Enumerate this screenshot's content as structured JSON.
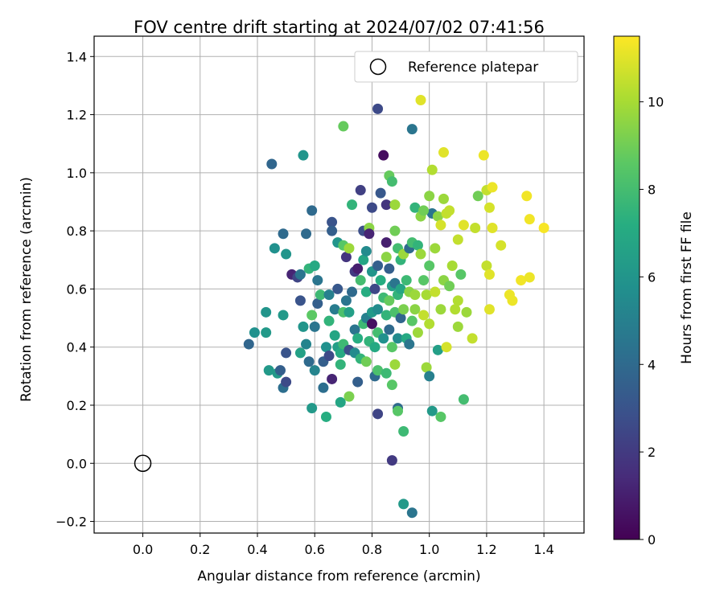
{
  "chart_data": {
    "type": "scatter",
    "title": "FOV centre drift starting at 2024/07/02 07:41:56",
    "xlabel": "Angular distance from reference (arcmin)",
    "ylabel": "Rotation from reference (arcmin)",
    "xlim": [
      -0.17,
      1.54
    ],
    "ylim": [
      -0.24,
      1.47
    ],
    "xticks": [
      "0.0",
      "0.2",
      "0.4",
      "0.6",
      "0.8",
      "1.0",
      "1.2",
      "1.4"
    ],
    "yticks": [
      "−0.2",
      "0.0",
      "0.2",
      "0.4",
      "0.6",
      "0.8",
      "1.0",
      "1.2",
      "1.4"
    ],
    "grid": true,
    "legend": {
      "position": "top-right",
      "entries": [
        "Reference platepar"
      ]
    },
    "colorbar": {
      "label": "Hours from first FF file",
      "colormap": "viridis",
      "range": [
        0,
        11.5
      ],
      "ticks": [
        "0",
        "2",
        "4",
        "6",
        "8",
        "10"
      ]
    },
    "reference_point": {
      "x": 0.0,
      "y": 0.0
    },
    "points": [
      [
        0.37,
        0.41,
        3.8
      ],
      [
        0.39,
        0.45,
        5.8
      ],
      [
        0.43,
        0.45,
        6.2
      ],
      [
        0.43,
        0.52,
        6.0
      ],
      [
        0.44,
        0.32,
        6.2
      ],
      [
        0.45,
        1.03,
        3.8
      ],
      [
        0.46,
        0.74,
        5.8
      ],
      [
        0.47,
        0.31,
        6.2
      ],
      [
        0.48,
        0.32,
        3.5
      ],
      [
        0.49,
        0.51,
        6.2
      ],
      [
        0.49,
        0.26,
        4.2
      ],
      [
        0.49,
        0.79,
        4.0
      ],
      [
        0.5,
        0.72,
        6.0
      ],
      [
        0.5,
        0.38,
        3.0
      ],
      [
        0.5,
        0.28,
        2.6
      ],
      [
        0.52,
        0.65,
        1.2
      ],
      [
        0.54,
        0.64,
        2.4
      ],
      [
        0.55,
        0.65,
        4.5
      ],
      [
        0.55,
        0.56,
        3.0
      ],
      [
        0.55,
        0.38,
        6.6
      ],
      [
        0.56,
        1.06,
        6.0
      ],
      [
        0.56,
        0.47,
        6.0
      ],
      [
        0.57,
        0.79,
        4.0
      ],
      [
        0.57,
        0.41,
        5.2
      ],
      [
        0.58,
        0.67,
        7.5
      ],
      [
        0.58,
        0.35,
        4.0
      ],
      [
        0.59,
        0.51,
        8.6
      ],
      [
        0.59,
        0.19,
        6.2
      ],
      [
        0.59,
        0.87,
        4.0
      ],
      [
        0.6,
        0.47,
        4.5
      ],
      [
        0.6,
        0.32,
        5.2
      ],
      [
        0.6,
        0.68,
        7.0
      ],
      [
        0.61,
        0.63,
        4.5
      ],
      [
        0.61,
        0.55,
        3.5
      ],
      [
        0.62,
        0.58,
        7.8
      ],
      [
        0.63,
        0.35,
        3.5
      ],
      [
        0.63,
        0.26,
        4.2
      ],
      [
        0.64,
        0.16,
        7.2
      ],
      [
        0.64,
        0.4,
        5.8
      ],
      [
        0.65,
        0.37,
        2.6
      ],
      [
        0.65,
        0.58,
        5.0
      ],
      [
        0.65,
        0.49,
        7.5
      ],
      [
        0.66,
        0.83,
        3.0
      ],
      [
        0.66,
        0.8,
        3.5
      ],
      [
        0.66,
        0.29,
        1.2
      ],
      [
        0.67,
        0.53,
        4.8
      ],
      [
        0.67,
        0.44,
        6.8
      ],
      [
        0.68,
        0.4,
        6.5
      ],
      [
        0.68,
        0.6,
        3.2
      ],
      [
        0.68,
        0.76,
        6.0
      ],
      [
        0.69,
        0.38,
        7.0
      ],
      [
        0.69,
        0.34,
        7.5
      ],
      [
        0.69,
        0.21,
        6.8
      ],
      [
        0.7,
        1.16,
        8.8
      ],
      [
        0.7,
        0.52,
        8.2
      ],
      [
        0.7,
        0.75,
        8.5
      ],
      [
        0.7,
        0.41,
        7.8
      ],
      [
        0.71,
        0.71,
        1.8
      ],
      [
        0.71,
        0.56,
        4.5
      ],
      [
        0.72,
        0.39,
        2.8
      ],
      [
        0.72,
        0.74,
        9.8
      ],
      [
        0.72,
        0.52,
        6.5
      ],
      [
        0.72,
        0.23,
        9.2
      ],
      [
        0.73,
        0.89,
        7.5
      ],
      [
        0.73,
        0.59,
        4.0
      ],
      [
        0.74,
        0.66,
        2.0
      ],
      [
        0.74,
        0.46,
        4.5
      ],
      [
        0.74,
        0.38,
        5.5
      ],
      [
        0.75,
        0.67,
        1.0
      ],
      [
        0.75,
        0.43,
        7.2
      ],
      [
        0.75,
        0.28,
        3.5
      ],
      [
        0.76,
        0.94,
        2.2
      ],
      [
        0.76,
        0.36,
        7.5
      ],
      [
        0.76,
        0.63,
        8.0
      ],
      [
        0.77,
        0.48,
        7.8
      ],
      [
        0.77,
        0.8,
        2.8
      ],
      [
        0.77,
        0.7,
        6.8
      ],
      [
        0.78,
        0.73,
        5.5
      ],
      [
        0.78,
        0.59,
        7.2
      ],
      [
        0.78,
        0.5,
        5.0
      ],
      [
        0.78,
        0.35,
        9.0
      ],
      [
        0.79,
        0.81,
        9.5
      ],
      [
        0.79,
        0.79,
        1.2
      ],
      [
        0.79,
        0.42,
        7.5
      ],
      [
        0.8,
        0.88,
        2.6
      ],
      [
        0.8,
        0.66,
        6.0
      ],
      [
        0.8,
        0.52,
        6.2
      ],
      [
        0.8,
        0.48,
        0.5
      ],
      [
        0.81,
        0.4,
        7.0
      ],
      [
        0.81,
        0.3,
        4.0
      ],
      [
        0.81,
        0.6,
        2.5
      ],
      [
        0.82,
        1.22,
        2.6
      ],
      [
        0.82,
        0.68,
        3.5
      ],
      [
        0.82,
        0.53,
        5.5
      ],
      [
        0.82,
        0.45,
        8.0
      ],
      [
        0.82,
        0.32,
        8.2
      ],
      [
        0.82,
        0.17,
        2.4
      ],
      [
        0.83,
        0.93,
        3.2
      ],
      [
        0.83,
        0.63,
        7.2
      ],
      [
        0.84,
        1.06,
        0.4
      ],
      [
        0.84,
        0.57,
        7.8
      ],
      [
        0.84,
        0.43,
        5.8
      ],
      [
        0.85,
        0.89,
        1.8
      ],
      [
        0.85,
        0.76,
        1.0
      ],
      [
        0.85,
        0.71,
        9.5
      ],
      [
        0.85,
        0.51,
        7.5
      ],
      [
        0.85,
        0.31,
        7.8
      ],
      [
        0.86,
        0.99,
        8.8
      ],
      [
        0.86,
        0.67,
        3.5
      ],
      [
        0.86,
        0.56,
        8.8
      ],
      [
        0.86,
        0.46,
        4.0
      ],
      [
        0.87,
        0.97,
        8.0
      ],
      [
        0.87,
        0.61,
        6.5
      ],
      [
        0.87,
        0.4,
        8.5
      ],
      [
        0.87,
        0.27,
        8.5
      ],
      [
        0.87,
        0.01,
        2.0
      ],
      [
        0.88,
        0.89,
        9.8
      ],
      [
        0.88,
        0.8,
        9.0
      ],
      [
        0.88,
        0.62,
        4.5
      ],
      [
        0.88,
        0.52,
        8.2
      ],
      [
        0.88,
        0.34,
        9.8
      ],
      [
        0.89,
        0.74,
        8.0
      ],
      [
        0.89,
        0.58,
        7.5
      ],
      [
        0.89,
        0.43,
        5.5
      ],
      [
        0.89,
        0.19,
        4.0
      ],
      [
        0.89,
        0.18,
        8.5
      ],
      [
        0.9,
        0.7,
        7.5
      ],
      [
        0.9,
        0.6,
        6.8
      ],
      [
        0.9,
        0.5,
        3.8
      ],
      [
        0.91,
        0.72,
        9.8
      ],
      [
        0.91,
        0.53,
        9.2
      ],
      [
        0.91,
        0.11,
        7.8
      ],
      [
        0.91,
        -0.14,
        6.2
      ],
      [
        0.92,
        0.63,
        7.8
      ],
      [
        0.92,
        0.43,
        7.0
      ],
      [
        0.93,
        0.74,
        4.0
      ],
      [
        0.93,
        0.59,
        9.5
      ],
      [
        0.93,
        0.41,
        4.5
      ],
      [
        0.94,
        1.15,
        4.5
      ],
      [
        0.94,
        0.76,
        8.0
      ],
      [
        0.94,
        0.49,
        8.5
      ],
      [
        0.94,
        -0.17,
        4.5
      ],
      [
        0.95,
        0.58,
        9.8
      ],
      [
        0.95,
        0.53,
        9.5
      ],
      [
        0.96,
        0.45,
        9.8
      ],
      [
        0.96,
        0.75,
        7.5
      ],
      [
        0.97,
        1.25,
        11.0
      ],
      [
        0.97,
        0.85,
        9.5
      ],
      [
        0.97,
        0.72,
        9.8
      ],
      [
        0.98,
        0.63,
        8.5
      ],
      [
        0.98,
        0.51,
        10.5
      ],
      [
        0.99,
        0.33,
        9.8
      ],
      [
        0.99,
        0.58,
        10.0
      ],
      [
        1.0,
        0.92,
        9.5
      ],
      [
        1.0,
        0.68,
        8.5
      ],
      [
        1.0,
        0.48,
        10.2
      ],
      [
        1.0,
        0.3,
        5.0
      ],
      [
        1.01,
        1.01,
        10.2
      ],
      [
        1.01,
        0.86,
        4.5
      ],
      [
        1.01,
        0.18,
        6.2
      ],
      [
        1.02,
        0.74,
        9.8
      ],
      [
        1.02,
        0.59,
        10.5
      ],
      [
        1.03,
        0.39,
        6.5
      ],
      [
        1.03,
        0.85,
        9.5
      ],
      [
        1.04,
        0.82,
        10.8
      ],
      [
        1.04,
        0.53,
        9.8
      ],
      [
        1.04,
        0.16,
        8.5
      ],
      [
        1.05,
        1.07,
        11.0
      ],
      [
        1.05,
        0.91,
        9.8
      ],
      [
        1.05,
        0.63,
        9.5
      ],
      [
        1.06,
        0.4,
        10.8
      ],
      [
        1.06,
        0.86,
        10.5
      ],
      [
        1.07,
        0.61,
        9.0
      ],
      [
        1.08,
        0.68,
        10.0
      ],
      [
        1.09,
        0.53,
        10.2
      ],
      [
        1.1,
        0.77,
        10.5
      ],
      [
        1.1,
        0.56,
        10.2
      ],
      [
        1.1,
        0.47,
        9.8
      ],
      [
        1.11,
        0.65,
        8.5
      ],
      [
        1.12,
        0.82,
        11.0
      ],
      [
        1.12,
        0.22,
        8.0
      ],
      [
        1.13,
        0.52,
        9.8
      ],
      [
        1.15,
        0.43,
        10.5
      ],
      [
        1.16,
        0.81,
        10.5
      ],
      [
        1.17,
        0.92,
        9.0
      ],
      [
        1.19,
        1.06,
        11.2
      ],
      [
        1.2,
        0.94,
        10.5
      ],
      [
        1.2,
        0.68,
        10.5
      ],
      [
        1.21,
        0.88,
        10.8
      ],
      [
        1.21,
        0.65,
        11.0
      ],
      [
        1.21,
        0.53,
        11.0
      ],
      [
        1.22,
        0.95,
        11.2
      ],
      [
        1.22,
        0.81,
        11.0
      ],
      [
        1.25,
        0.75,
        10.8
      ],
      [
        1.28,
        0.58,
        11.2
      ],
      [
        1.29,
        0.56,
        11.2
      ],
      [
        1.32,
        0.63,
        11.3
      ],
      [
        1.34,
        0.92,
        11.3
      ],
      [
        1.35,
        0.84,
        11.3
      ],
      [
        1.35,
        0.64,
        11.2
      ],
      [
        1.4,
        0.81,
        11.4
      ],
      [
        0.95,
        0.88,
        7.5
      ],
      [
        0.98,
        0.87,
        9.0
      ],
      [
        1.07,
        0.87,
        10.5
      ]
    ]
  }
}
